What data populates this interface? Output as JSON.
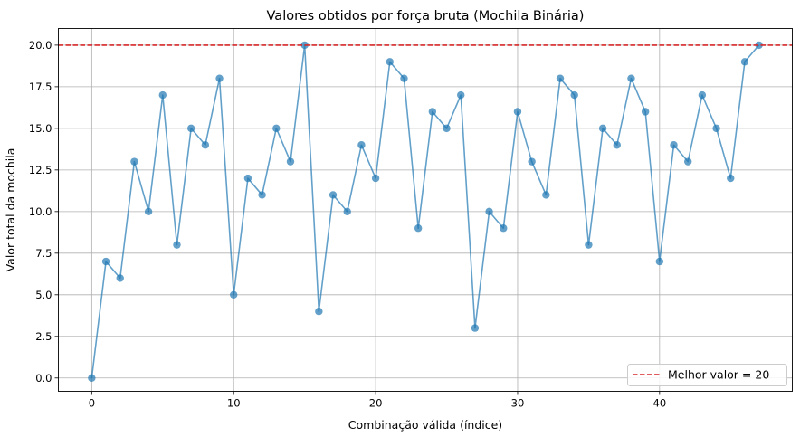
{
  "chart_data": {
    "type": "line",
    "title": "Valores obtidos por força bruta (Mochila Binária)",
    "xlabel": "Combinação válida (índice)",
    "ylabel": "Valor total da mochila",
    "xlim": [
      -2.35,
      49.35
    ],
    "ylim": [
      -0.8,
      21.0
    ],
    "xticks": [
      0,
      10,
      20,
      30,
      40
    ],
    "xtick_labels": [
      "0",
      "10",
      "20",
      "30",
      "40"
    ],
    "yticks": [
      0,
      2.5,
      5,
      7.5,
      10,
      12.5,
      15,
      17.5,
      20
    ],
    "ytick_labels": [
      "0.0",
      "2.5",
      "5.0",
      "7.5",
      "10.0",
      "12.5",
      "15.0",
      "17.5",
      "20.0"
    ],
    "grid": true,
    "legend_position": "lower-right",
    "series": [
      {
        "color": "#1f77b4",
        "marker": "circle",
        "x": [
          0,
          1,
          2,
          3,
          4,
          5,
          6,
          7,
          8,
          9,
          10,
          11,
          12,
          13,
          14,
          15,
          16,
          17,
          18,
          19,
          20,
          21,
          22,
          23,
          24,
          25,
          26,
          27,
          28,
          29,
          30,
          31,
          32,
          33,
          34,
          35,
          36,
          37,
          38,
          39,
          40,
          41,
          42,
          43,
          44,
          45,
          46,
          47
        ],
        "values": [
          0,
          7,
          6,
          13,
          10,
          17,
          8,
          15,
          14,
          18,
          5,
          12,
          11,
          15,
          13,
          20,
          4,
          11,
          10,
          14,
          12,
          19,
          18,
          9,
          16,
          15,
          17,
          3,
          10,
          9,
          16,
          13,
          11,
          18,
          17,
          8,
          15,
          14,
          18,
          16,
          7,
          14,
          13,
          17,
          15,
          12,
          19,
          20
        ]
      }
    ],
    "hline": {
      "y": 20,
      "color": "#d62728",
      "style": "dashed",
      "label": "Melhor valor = 20"
    }
  }
}
